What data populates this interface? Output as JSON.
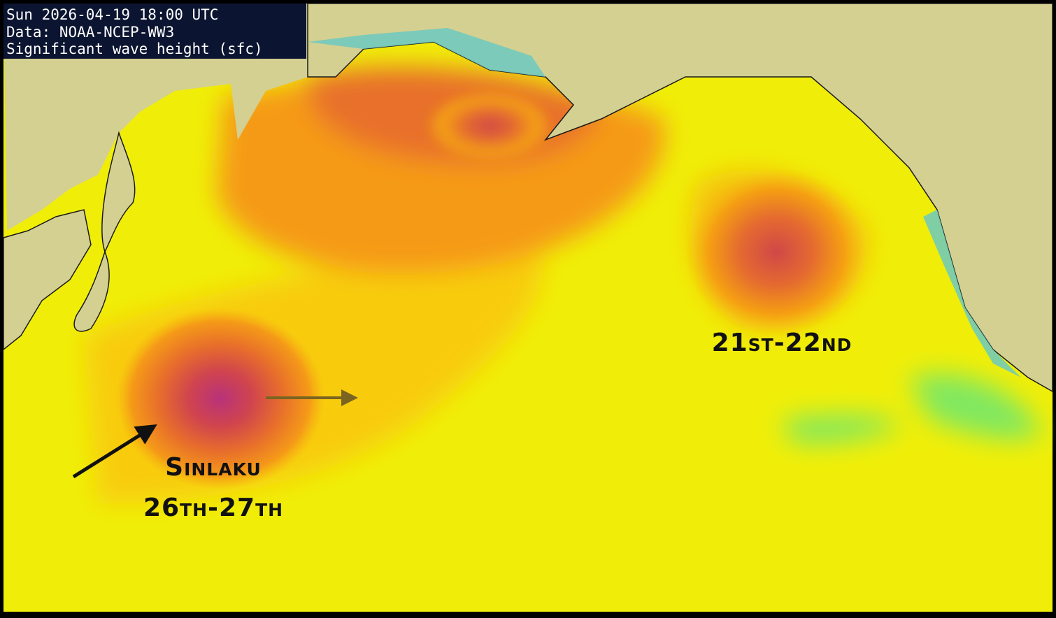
{
  "header": {
    "lines": [
      "Sun 2026-04-19 18:00 UTC",
      "Data: NOAA-NCEP-WW3",
      "Significant wave height (sfc)"
    ]
  },
  "storms": [
    {
      "name": "Sinlaku",
      "dates": "26th-27th"
    },
    {
      "dates": "21st-22nd"
    }
  ]
}
